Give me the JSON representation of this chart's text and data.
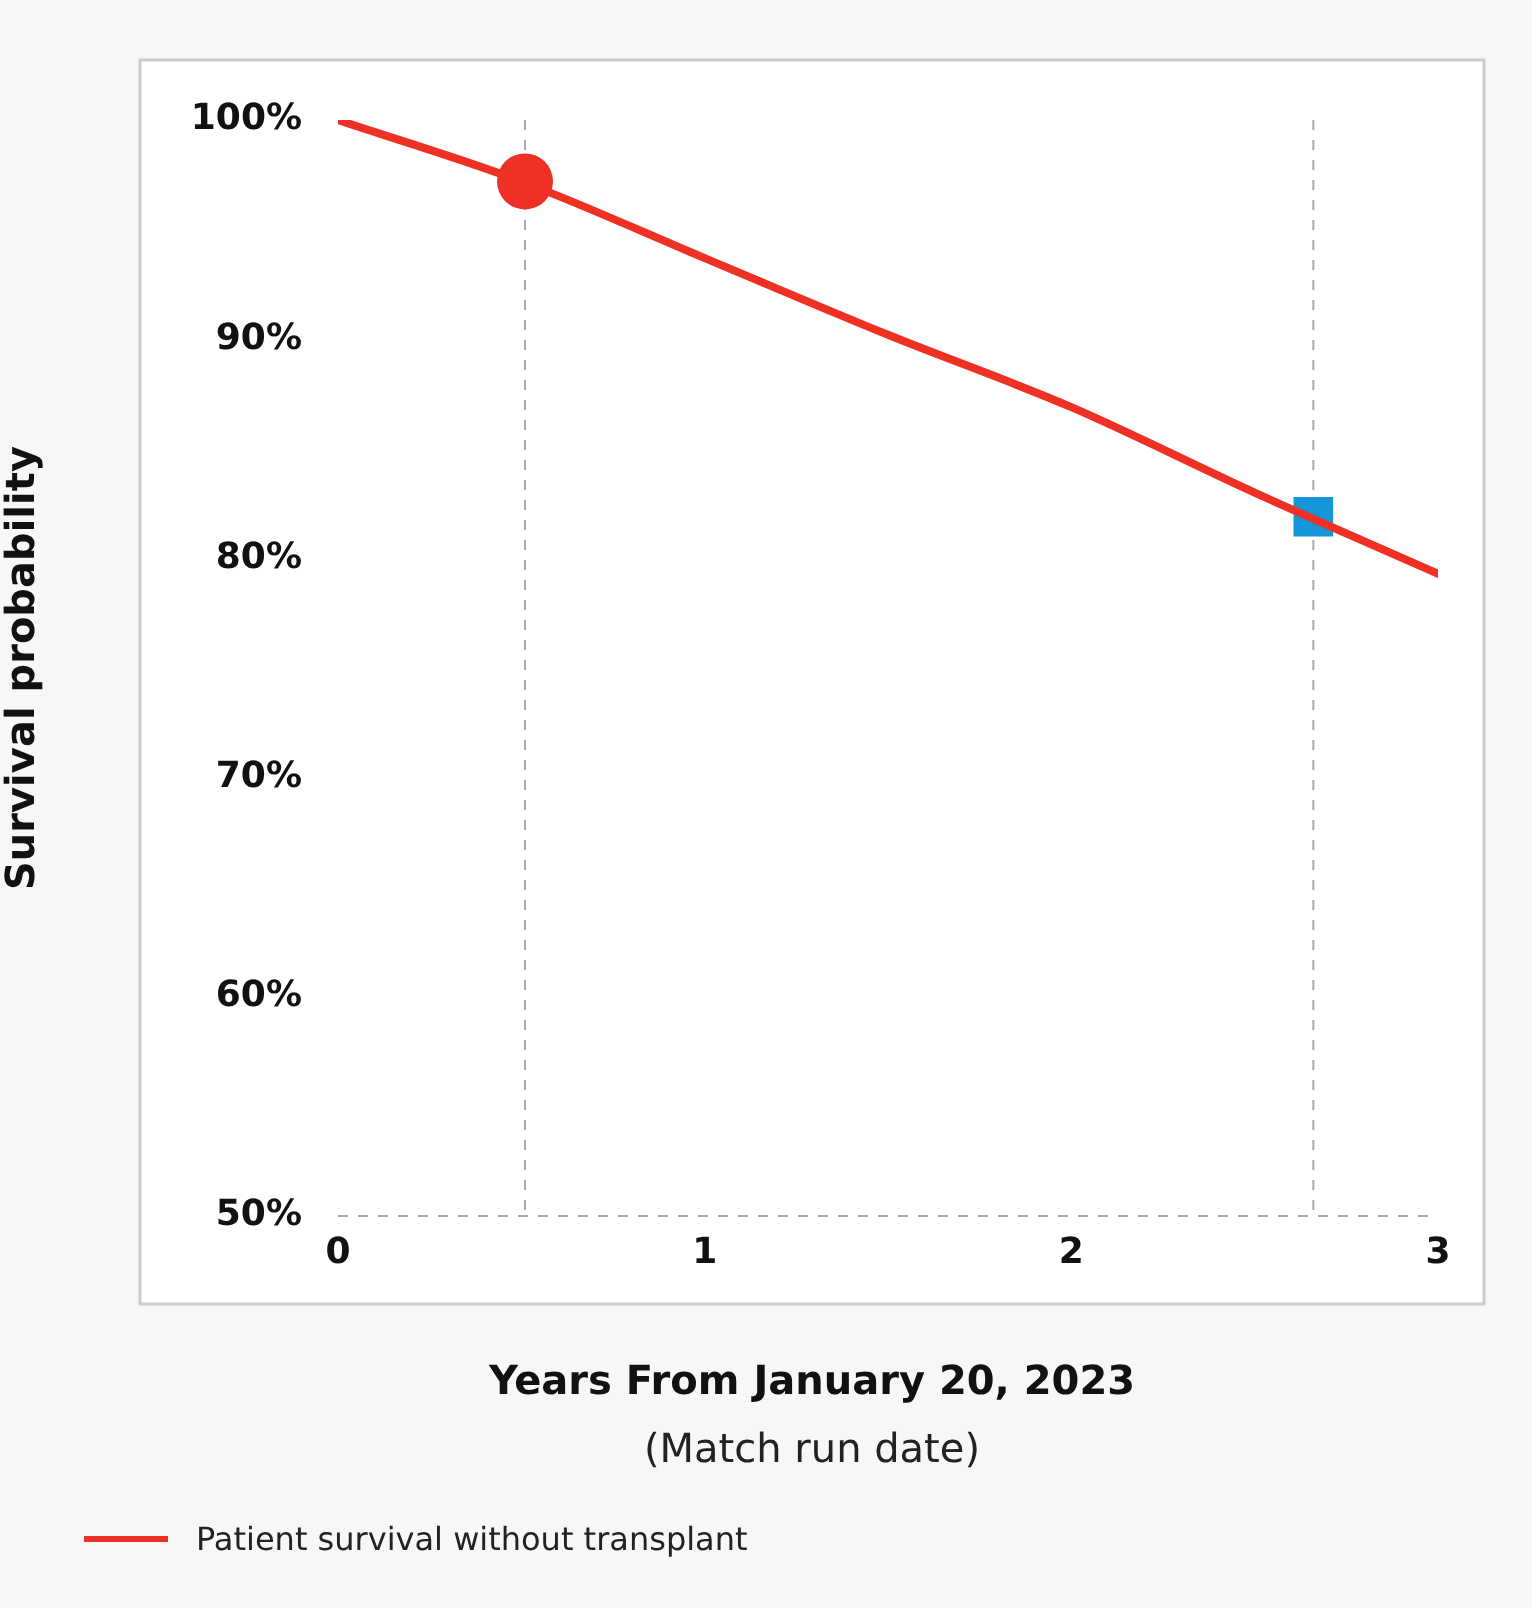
{
  "chart_data": {
    "type": "line",
    "xlabel": "Years From January 20, 2023",
    "ylabel": "Survival probability",
    "annotations": [
      "(Match run date)"
    ],
    "xlim": [
      0,
      3
    ],
    "xticks": [
      0,
      1,
      2,
      3
    ],
    "ylim": [
      50,
      100
    ],
    "yticks": [
      {
        "value": 50,
        "label": "50%"
      },
      {
        "value": 60,
        "label": "60%"
      },
      {
        "value": 70,
        "label": "70%"
      },
      {
        "value": 80,
        "label": "80%"
      },
      {
        "value": 90,
        "label": "90%"
      },
      {
        "value": 100,
        "label": "100%"
      }
    ],
    "legend": "bottom left",
    "line_style": "solid",
    "ref_lines": [
      {
        "axis": "x",
        "value": 0.51,
        "color": "#aaaaaa",
        "line_style": "dashed"
      },
      {
        "axis": "x",
        "value": 2.66,
        "color": "#aaaaaa",
        "line_style": "dashed"
      }
    ],
    "series": [
      {
        "name": "Patient survival without transplant",
        "color": "#ee3124",
        "marker": "none",
        "x": [
          0,
          0.5,
          1,
          1.5,
          2,
          2.5,
          3
        ],
        "values": [
          100,
          97.2,
          93.7,
          90.2,
          86.9,
          83.0,
          79.3
        ]
      },
      {
        "type": "scatter",
        "color": "#ee3124",
        "marker": "circle",
        "x": [
          0.51
        ],
        "values": [
          97.2
        ]
      },
      {
        "type": "scatter",
        "color": "#1496d8",
        "marker": "square",
        "x": [
          2.66
        ],
        "values": [
          81.9
        ]
      }
    ]
  }
}
